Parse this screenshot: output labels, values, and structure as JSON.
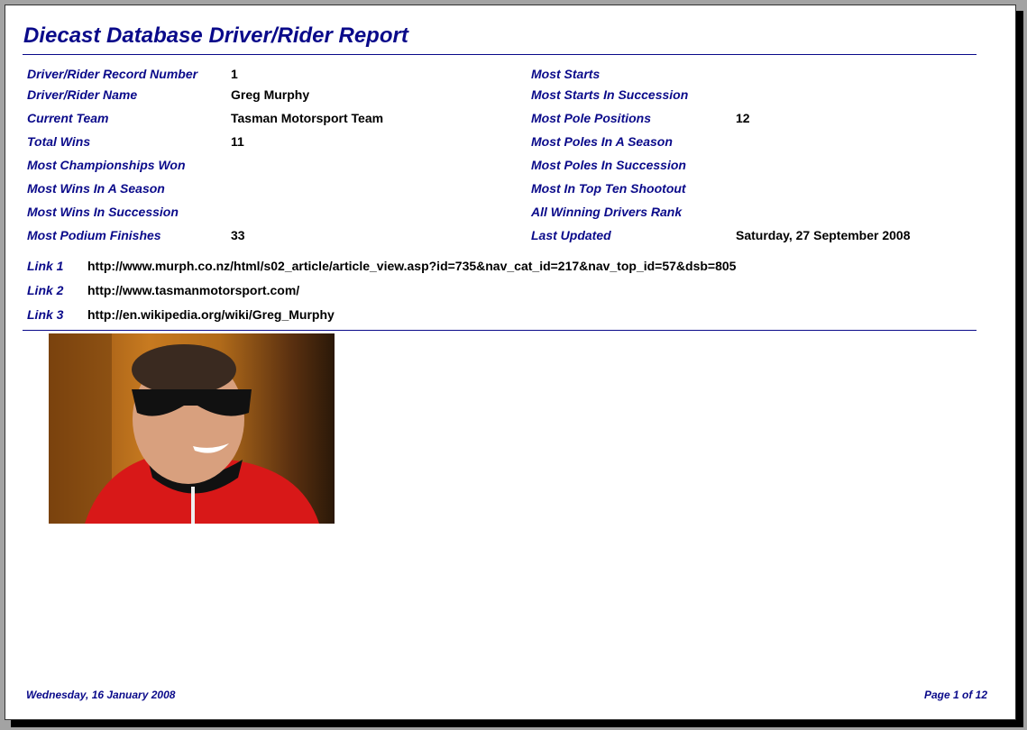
{
  "report": {
    "title": "Diecast Database Driver/Rider Report",
    "left_fields": [
      {
        "label": "Driver/Rider Record Number",
        "value": "1"
      },
      {
        "label": "Driver/Rider Name",
        "value": "Greg Murphy"
      },
      {
        "label": "Current Team",
        "value": "Tasman Motorsport Team"
      },
      {
        "label": "Total Wins",
        "value": "11"
      },
      {
        "label": "Most Championships Won",
        "value": ""
      },
      {
        "label": "Most Wins In A Season",
        "value": ""
      },
      {
        "label": "Most Wins In Succession",
        "value": ""
      },
      {
        "label": "Most Podium Finishes",
        "value": "33"
      }
    ],
    "right_fields": [
      {
        "label": "Most Starts",
        "value": ""
      },
      {
        "label": "Most Starts In Succession",
        "value": ""
      },
      {
        "label": "Most Pole Positions",
        "value": "12"
      },
      {
        "label": "Most Poles In A Season",
        "value": ""
      },
      {
        "label": "Most Poles In Succession",
        "value": ""
      },
      {
        "label": "Most In Top Ten Shootout",
        "value": ""
      },
      {
        "label": "All Winning Drivers Rank",
        "value": ""
      },
      {
        "label": "Last Updated",
        "value": "Saturday, 27 September 2008"
      }
    ],
    "links": [
      {
        "label": "Link 1",
        "value": "http://www.murph.co.nz/html/s02_article/article_view.asp?id=735&nav_cat_id=217&nav_top_id=57&dsb=805"
      },
      {
        "label": "Link 2",
        "value": "http://www.tasmanmotorsport.com/"
      },
      {
        "label": "Link 3",
        "value": "http://en.wikipedia.org/wiki/Greg_Murphy"
      }
    ],
    "footer": {
      "date": "Wednesday, 16 January 2008",
      "page": "Page 1 of 12"
    }
  },
  "colors": {
    "accent": "#0a0a8a",
    "background": "#a3a3a3"
  }
}
